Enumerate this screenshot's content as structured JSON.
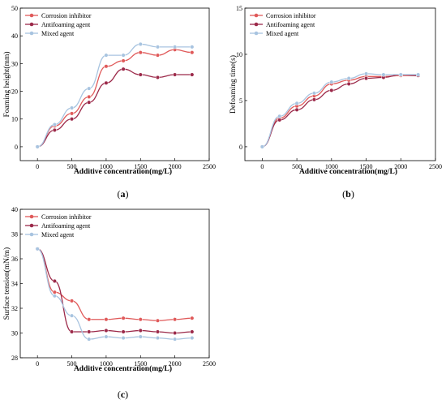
{
  "figure": {
    "panels": [
      "(a)",
      "(b)",
      "(c)"
    ]
  },
  "chart_data": [
    {
      "type": "line",
      "label": "(a)",
      "xlabel": "Additive concentration(mg/L)",
      "ylabel": "Foaming height(mm)",
      "xlim": [
        -250,
        2500
      ],
      "ylim": [
        -5,
        50
      ],
      "xticks": [
        0,
        500,
        1000,
        1500,
        2000,
        2500
      ],
      "yticks": [
        0,
        10,
        20,
        30,
        40,
        50
      ],
      "legend_position": "top-left",
      "x": [
        0,
        250,
        500,
        750,
        1000,
        1250,
        1500,
        1750,
        2000,
        2250
      ],
      "series": [
        {
          "name": "Corrosion inhibitor",
          "color": "#e05a5a",
          "values": [
            0,
            7.5,
            12,
            18,
            29,
            31,
            34,
            33,
            35,
            34
          ]
        },
        {
          "name": "Antifoaming agent",
          "color": "#9c2a4a",
          "values": [
            0,
            6,
            10,
            16,
            23,
            28,
            26,
            25,
            26,
            26
          ]
        },
        {
          "name": "Mixed agent",
          "color": "#a8c4e0",
          "values": [
            0,
            8,
            14,
            21,
            33,
            33,
            37,
            36,
            36,
            36
          ]
        }
      ]
    },
    {
      "type": "line",
      "label": "(b)",
      "xlabel": "Additive concentration(mg/L)",
      "ylabel": "Defoaming time(s)",
      "xlim": [
        -250,
        2500
      ],
      "ylim": [
        -1.5,
        15
      ],
      "xticks": [
        0,
        500,
        1000,
        1500,
        2000,
        2500
      ],
      "yticks": [
        0,
        5,
        10,
        15
      ],
      "legend_position": "top-left",
      "x": [
        0,
        250,
        500,
        750,
        1000,
        1250,
        1500,
        1750,
        2000,
        2250
      ],
      "series": [
        {
          "name": "Corrosion inhibitor",
          "color": "#e05a5a",
          "values": [
            0,
            3.1,
            4.4,
            5.5,
            6.8,
            7.2,
            7.6,
            7.6,
            7.7,
            7.7
          ]
        },
        {
          "name": "Antifoaming agent",
          "color": "#9c2a4a",
          "values": [
            0,
            2.9,
            4.0,
            5.1,
            6.1,
            6.8,
            7.4,
            7.5,
            7.8,
            7.7
          ]
        },
        {
          "name": "Mixed agent",
          "color": "#a8c4e0",
          "values": [
            0,
            3.3,
            4.7,
            5.8,
            7.0,
            7.4,
            7.9,
            7.8,
            7.8,
            7.8
          ]
        }
      ]
    },
    {
      "type": "line",
      "label": "(c)",
      "xlabel": "Additive concentration(mg/L)",
      "ylabel": "Surface tension(mN/m)",
      "xlim": [
        -250,
        2500
      ],
      "ylim": [
        28,
        40
      ],
      "xticks": [
        0,
        500,
        1000,
        1500,
        2000,
        2500
      ],
      "yticks": [
        28,
        30,
        32,
        34,
        36,
        38,
        40
      ],
      "legend_position": "top-left",
      "x": [
        0,
        250,
        500,
        750,
        1000,
        1250,
        1500,
        1750,
        2000,
        2250
      ],
      "series": [
        {
          "name": "Corrosion inhibitor",
          "color": "#e05a5a",
          "values": [
            36.8,
            33.3,
            32.6,
            31.1,
            31.1,
            31.2,
            31.1,
            31.0,
            31.1,
            31.2
          ]
        },
        {
          "name": "Antifoaming agent",
          "color": "#9c2a4a",
          "values": [
            36.8,
            34.2,
            30.1,
            30.1,
            30.2,
            30.1,
            30.2,
            30.1,
            30.0,
            30.1
          ]
        },
        {
          "name": "Mixed agent",
          "color": "#a8c4e0",
          "values": [
            36.8,
            33.0,
            31.4,
            29.5,
            29.7,
            29.6,
            29.7,
            29.6,
            29.5,
            29.6
          ]
        }
      ]
    }
  ]
}
